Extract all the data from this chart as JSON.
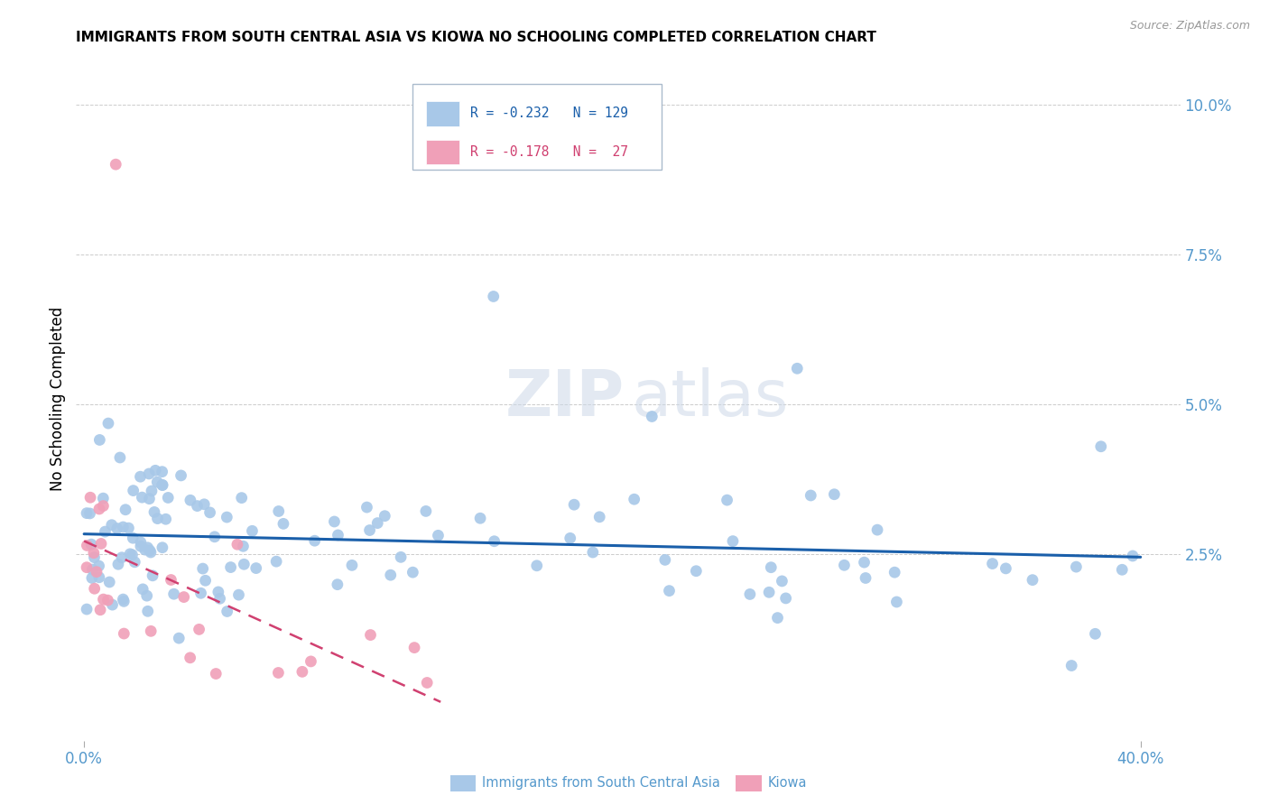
{
  "title": "IMMIGRANTS FROM SOUTH CENTRAL ASIA VS KIOWA NO SCHOOLING COMPLETED CORRELATION CHART",
  "source": "Source: ZipAtlas.com",
  "ylabel": "No Schooling Completed",
  "right_yticks": [
    "10.0%",
    "7.5%",
    "5.0%",
    "2.5%"
  ],
  "right_ytick_vals": [
    0.1,
    0.075,
    0.05,
    0.025
  ],
  "xlim": [
    0.0,
    0.4
  ],
  "ylim": [
    0.0,
    0.105
  ],
  "color_blue": "#a8c8e8",
  "color_blue_line": "#1a5faa",
  "color_pink": "#f0a0b8",
  "color_pink_line": "#d04070",
  "color_axis_labels": "#5599cc",
  "watermark_zip": "ZIP",
  "watermark_atlas": "atlas",
  "legend_box_color": "#e8f0f8",
  "legend_border": "#aabbcc"
}
